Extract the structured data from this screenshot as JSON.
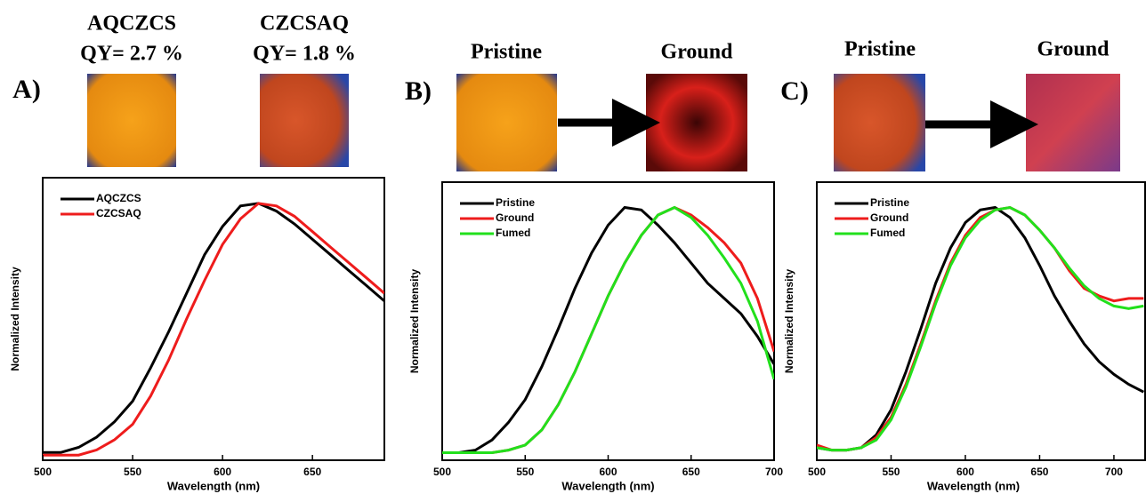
{
  "chart_data": [
    {
      "type": "line",
      "panel": "A)",
      "images": [
        {
          "title": "AQCZCS",
          "caption": "QY= 2.7 %"
        },
        {
          "title": "CZCSAQ",
          "caption": "QY= 1.8 %"
        }
      ],
      "xlabel": "Wavelength (nm)",
      "ylabel": "Normalized Intensity",
      "x": [
        500,
        510,
        520,
        530,
        540,
        550,
        560,
        570,
        580,
        590,
        600,
        610,
        620,
        630,
        640,
        650,
        660,
        670,
        680,
        690
      ],
      "series": [
        {
          "name": "AQCZCS",
          "color": "#000000",
          "values": [
            0.03,
            0.03,
            0.05,
            0.09,
            0.15,
            0.23,
            0.36,
            0.5,
            0.65,
            0.8,
            0.91,
            0.99,
            1.0,
            0.97,
            0.92,
            0.86,
            0.8,
            0.74,
            0.68,
            0.62
          ]
        },
        {
          "name": "CZCSAQ",
          "color": "#ee1c1c",
          "values": [
            0.02,
            0.02,
            0.02,
            0.04,
            0.08,
            0.14,
            0.25,
            0.39,
            0.55,
            0.7,
            0.84,
            0.94,
            1.0,
            0.99,
            0.95,
            0.89,
            0.83,
            0.77,
            0.71,
            0.65
          ]
        }
      ],
      "xlim": [
        500,
        690
      ],
      "xticks": [
        500,
        550,
        600,
        650
      ],
      "ylim": [
        0,
        1.1
      ],
      "legend": "upper left"
    },
    {
      "type": "line",
      "panel": "B)",
      "images": [
        {
          "title": "Pristine"
        },
        {
          "title": "Ground"
        }
      ],
      "xlabel": "Wavelength (nm)",
      "ylabel": "Normalized Intensity",
      "x": [
        500,
        510,
        520,
        530,
        540,
        550,
        560,
        570,
        580,
        590,
        600,
        610,
        620,
        630,
        640,
        650,
        660,
        670,
        680,
        690,
        700
      ],
      "series": [
        {
          "name": "Pristine",
          "color": "#000000",
          "values": [
            0.03,
            0.03,
            0.04,
            0.08,
            0.15,
            0.24,
            0.37,
            0.52,
            0.68,
            0.82,
            0.93,
            1.0,
            0.99,
            0.93,
            0.86,
            0.78,
            0.7,
            0.64,
            0.58,
            0.49,
            0.38
          ]
        },
        {
          "name": "Ground",
          "color": "#ee1c1c",
          "values": [
            0.03,
            0.03,
            0.03,
            0.03,
            0.04,
            0.06,
            0.12,
            0.22,
            0.35,
            0.5,
            0.65,
            0.78,
            0.89,
            0.97,
            1.0,
            0.97,
            0.92,
            0.86,
            0.78,
            0.64,
            0.43
          ]
        },
        {
          "name": "Fumed",
          "color": "#22e01c",
          "values": [
            0.03,
            0.03,
            0.03,
            0.03,
            0.04,
            0.06,
            0.12,
            0.22,
            0.35,
            0.5,
            0.65,
            0.78,
            0.89,
            0.97,
            1.0,
            0.96,
            0.89,
            0.8,
            0.7,
            0.55,
            0.32
          ]
        }
      ],
      "xlim": [
        500,
        700
      ],
      "xticks": [
        500,
        550,
        600,
        650,
        700
      ],
      "ylim": [
        0,
        1.1
      ],
      "legend": "upper left"
    },
    {
      "type": "line",
      "panel": "C)",
      "images": [
        {
          "title": "Pristine"
        },
        {
          "title": "Ground"
        }
      ],
      "xlabel": "Wavelength (nm)",
      "ylabel": "Normalized Intensity",
      "x": [
        500,
        510,
        520,
        530,
        540,
        550,
        560,
        570,
        580,
        590,
        600,
        610,
        620,
        630,
        640,
        650,
        660,
        670,
        680,
        690,
        700,
        710,
        720
      ],
      "series": [
        {
          "name": "Pristine",
          "color": "#000000",
          "values": [
            0.05,
            0.04,
            0.04,
            0.05,
            0.1,
            0.2,
            0.35,
            0.52,
            0.7,
            0.84,
            0.94,
            0.99,
            1.0,
            0.96,
            0.88,
            0.77,
            0.65,
            0.55,
            0.46,
            0.39,
            0.34,
            0.3,
            0.27
          ]
        },
        {
          "name": "Ground",
          "color": "#ee1c1c",
          "values": [
            0.06,
            0.04,
            0.04,
            0.05,
            0.09,
            0.17,
            0.3,
            0.46,
            0.63,
            0.78,
            0.89,
            0.96,
            0.99,
            1.0,
            0.97,
            0.91,
            0.84,
            0.75,
            0.68,
            0.65,
            0.63,
            0.64,
            0.64
          ]
        },
        {
          "name": "Fumed",
          "color": "#22e01c",
          "values": [
            0.05,
            0.04,
            0.04,
            0.05,
            0.08,
            0.16,
            0.29,
            0.45,
            0.62,
            0.77,
            0.88,
            0.95,
            0.99,
            1.0,
            0.97,
            0.91,
            0.84,
            0.76,
            0.69,
            0.64,
            0.61,
            0.6,
            0.61
          ]
        }
      ],
      "xlim": [
        500,
        721
      ],
      "xticks": [
        500,
        550,
        600,
        650,
        700
      ],
      "ylim": [
        0,
        1.1
      ],
      "legend": "upper left"
    }
  ]
}
